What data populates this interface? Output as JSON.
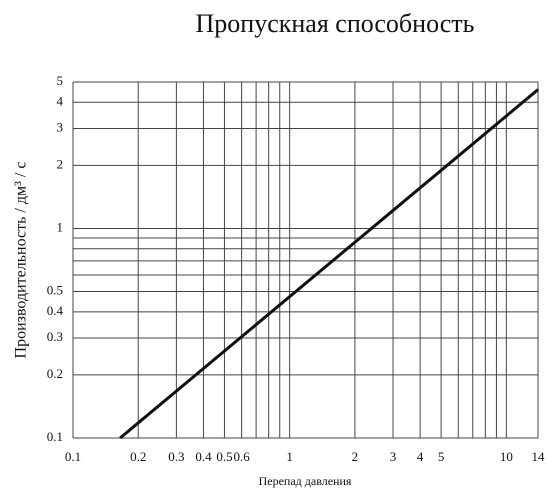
{
  "chart_data": {
    "type": "line",
    "title": "Пропускная способность",
    "xlabel": "Перепад давления",
    "ylabel": "Производительность / дм³ / с",
    "xscale": "log",
    "yscale": "log",
    "grid": true,
    "xlim": [
      0.1,
      14
    ],
    "ylim": [
      0.1,
      5
    ],
    "xticks": [
      0.1,
      0.2,
      0.3,
      0.4,
      0.5,
      0.6,
      1,
      2,
      3,
      4,
      5,
      10,
      14
    ],
    "xminorticks": [
      0.7,
      0.8,
      0.9,
      6,
      7,
      8,
      9
    ],
    "yticks": [
      0.1,
      0.2,
      0.3,
      0.4,
      0.5,
      1,
      2,
      3,
      4,
      5
    ],
    "yminorticks": [
      0.6,
      0.7,
      0.8,
      0.9
    ],
    "x": [
      0.165,
      14
    ],
    "series": [
      {
        "color": "#111111",
        "values": [
          0.1,
          4.6
        ]
      }
    ]
  }
}
